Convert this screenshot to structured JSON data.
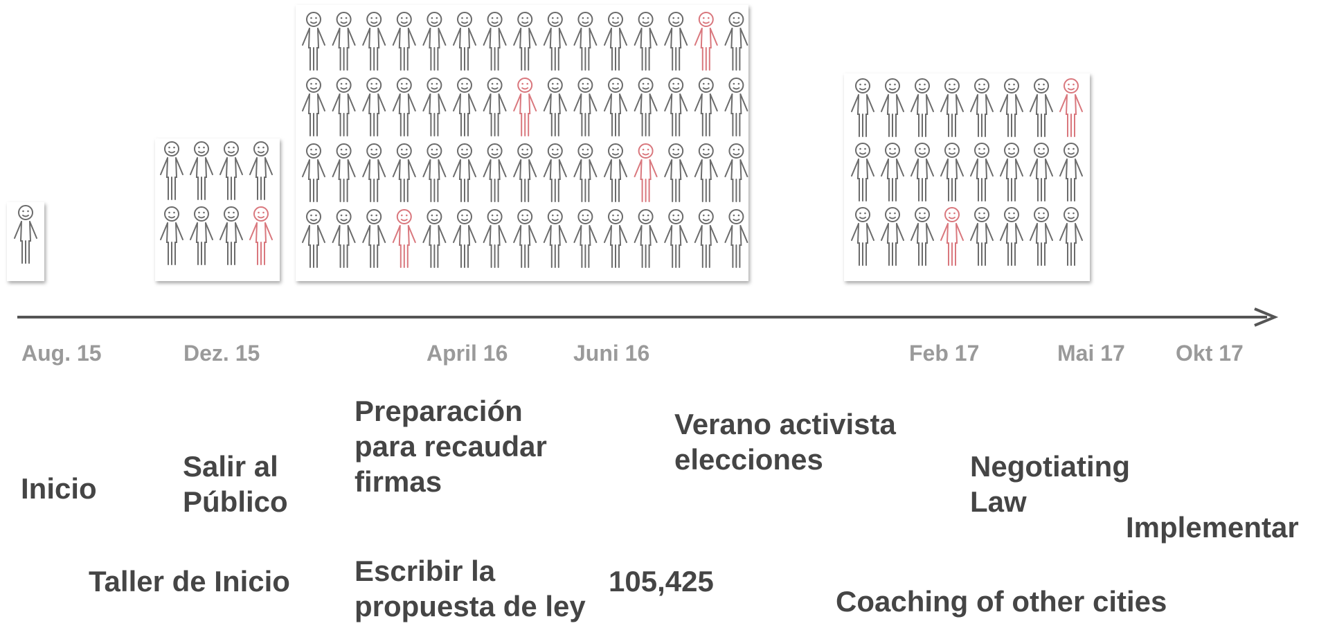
{
  "timeline": {
    "dates": [
      "Aug. 15",
      "Dez. 15",
      "April 16",
      "Juni 16",
      "Feb 17",
      "Mai 17",
      "Okt 17"
    ],
    "phases": [
      "Inicio",
      "Salir al Público",
      "Preparación para recaudar firmas",
      "Verano activista elecciones",
      "Negotiating Law",
      "Implementar"
    ],
    "milestones": [
      "Taller de Inicio",
      "Escribir la propuesta de ley",
      "105,425",
      "Coaching of other cities"
    ]
  }
}
